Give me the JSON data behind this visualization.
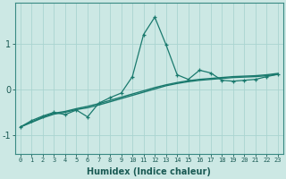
{
  "x": [
    0,
    1,
    2,
    3,
    4,
    5,
    6,
    7,
    8,
    9,
    10,
    11,
    12,
    13,
    14,
    15,
    16,
    17,
    18,
    19,
    20,
    21,
    22,
    23
  ],
  "y_line": [
    -0.82,
    -0.68,
    -0.58,
    -0.5,
    -0.55,
    -0.45,
    -0.6,
    -0.3,
    -0.18,
    -0.08,
    0.28,
    1.2,
    1.58,
    0.98,
    0.32,
    0.22,
    0.42,
    0.36,
    0.2,
    0.18,
    0.2,
    0.22,
    0.28,
    0.33
  ],
  "y_trend1": [
    -0.82,
    -0.72,
    -0.62,
    -0.54,
    -0.5,
    -0.44,
    -0.4,
    -0.34,
    -0.27,
    -0.2,
    -0.13,
    -0.06,
    0.01,
    0.08,
    0.13,
    0.17,
    0.2,
    0.22,
    0.24,
    0.26,
    0.27,
    0.28,
    0.3,
    0.33
  ],
  "y_trend2": [
    -0.82,
    -0.71,
    -0.6,
    -0.52,
    -0.48,
    -0.42,
    -0.37,
    -0.31,
    -0.24,
    -0.17,
    -0.1,
    -0.03,
    0.04,
    0.1,
    0.15,
    0.19,
    0.22,
    0.24,
    0.26,
    0.28,
    0.29,
    0.3,
    0.32,
    0.35
  ],
  "line_color": "#1a7a6e",
  "bg_color": "#cce8e4",
  "grid_color": "#aad4d0",
  "xlabel": "Humidex (Indice chaleur)",
  "yticks": [
    -1,
    0,
    1
  ],
  "xlim": [
    -0.5,
    23.5
  ],
  "ylim": [
    -1.4,
    1.9
  ]
}
